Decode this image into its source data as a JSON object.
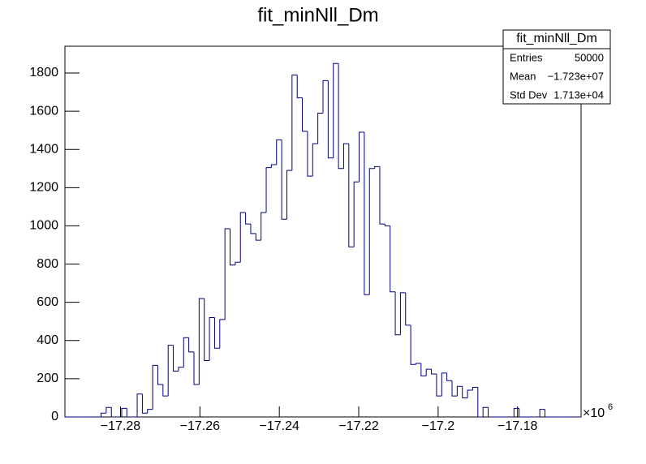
{
  "chart_data": {
    "type": "histogram",
    "title": "fit_minNll_Dm",
    "color": "#000080",
    "bins": [
      -17.294,
      -17.2927,
      -17.2914,
      -17.2901,
      -17.2888,
      -17.2875,
      -17.2862,
      -17.2849,
      -17.2836,
      -17.2823,
      -17.281,
      -17.2797,
      -17.2784,
      -17.2771,
      -17.2758,
      -17.2745,
      -17.2732,
      -17.2719,
      -17.2706,
      -17.2693,
      -17.268,
      -17.2667,
      -17.2654,
      -17.2641,
      -17.2628,
      -17.2615,
      -17.2602,
      -17.2589,
      -17.2576,
      -17.2563,
      -17.255,
      -17.2537,
      -17.2524,
      -17.2511,
      -17.2498,
      -17.2485,
      -17.2472,
      -17.2459,
      -17.2446,
      -17.2433,
      -17.242,
      -17.2407,
      -17.2394,
      -17.2381,
      -17.2368,
      -17.2355,
      -17.2342,
      -17.2329,
      -17.2316,
      -17.2303,
      -17.229,
      -17.2277,
      -17.2264,
      -17.2251,
      -17.2238,
      -17.2225,
      -17.2212,
      -17.2199,
      -17.2186,
      -17.2173,
      -17.216,
      -17.2147,
      -17.2134,
      -17.2121,
      -17.2108,
      -17.2095,
      -17.2082,
      -17.2069,
      -17.2056,
      -17.2043,
      -17.203,
      -17.2017,
      -17.2004,
      -17.1991,
      -17.1978,
      -17.1965,
      -17.1952,
      -17.1939,
      -17.1926,
      -17.1913,
      -17.19,
      -17.1887,
      -17.1874,
      -17.1861,
      -17.1848,
      -17.1835,
      -17.1822,
      -17.1809,
      -17.1796,
      -17.1783,
      -17.177,
      -17.1757,
      -17.1744,
      -17.1731,
      -17.1718,
      -17.1705,
      -17.1692,
      -17.1679,
      -17.1666,
      -17.1653,
      -17.164
    ],
    "values": [
      0,
      0,
      0,
      0,
      0,
      0,
      0,
      20,
      50,
      0,
      0,
      45,
      0,
      0,
      120,
      20,
      40,
      270,
      170,
      110,
      375,
      240,
      260,
      415,
      340,
      170,
      620,
      295,
      520,
      360,
      510,
      985,
      795,
      810,
      1070,
      1010,
      960,
      925,
      1070,
      1305,
      1320,
      1450,
      1035,
      1290,
      1790,
      1670,
      1495,
      1260,
      1430,
      1590,
      1760,
      1355,
      1850,
      1300,
      1430,
      890,
      1230,
      1490,
      640,
      1300,
      1310,
      1010,
      1000,
      655,
      430,
      650,
      480,
      275,
      280,
      215,
      250,
      225,
      110,
      230,
      190,
      110,
      160,
      100,
      140,
      155,
      0,
      50,
      0,
      0,
      0,
      0,
      0,
      45,
      0,
      0,
      0,
      0,
      40,
      0,
      0,
      0,
      0,
      0,
      0,
      0
    ],
    "xlim": [
      -17.294,
      -17.164
    ],
    "xticks": [
      {
        "value": -17.28,
        "label": "−17.28"
      },
      {
        "value": -17.26,
        "label": "−17.26"
      },
      {
        "value": -17.24,
        "label": "−17.24"
      },
      {
        "value": -17.22,
        "label": "−17.22"
      },
      {
        "value": -17.2,
        "label": "−17.2"
      },
      {
        "value": -17.18,
        "label": "−17.18"
      }
    ],
    "x_multiplier": {
      "base": "×10",
      "exponent": "6"
    },
    "ylim": [
      0,
      1940
    ],
    "yticks": [
      0,
      200,
      400,
      600,
      800,
      1000,
      1200,
      1400,
      1600,
      1800
    ],
    "stats": {
      "title": "fit_minNll_Dm",
      "rows": [
        [
          "Entries",
          "50000"
        ],
        [
          "Mean",
          "−1.723e+07"
        ],
        [
          "Std Dev",
          "1.713e+04"
        ]
      ]
    }
  }
}
